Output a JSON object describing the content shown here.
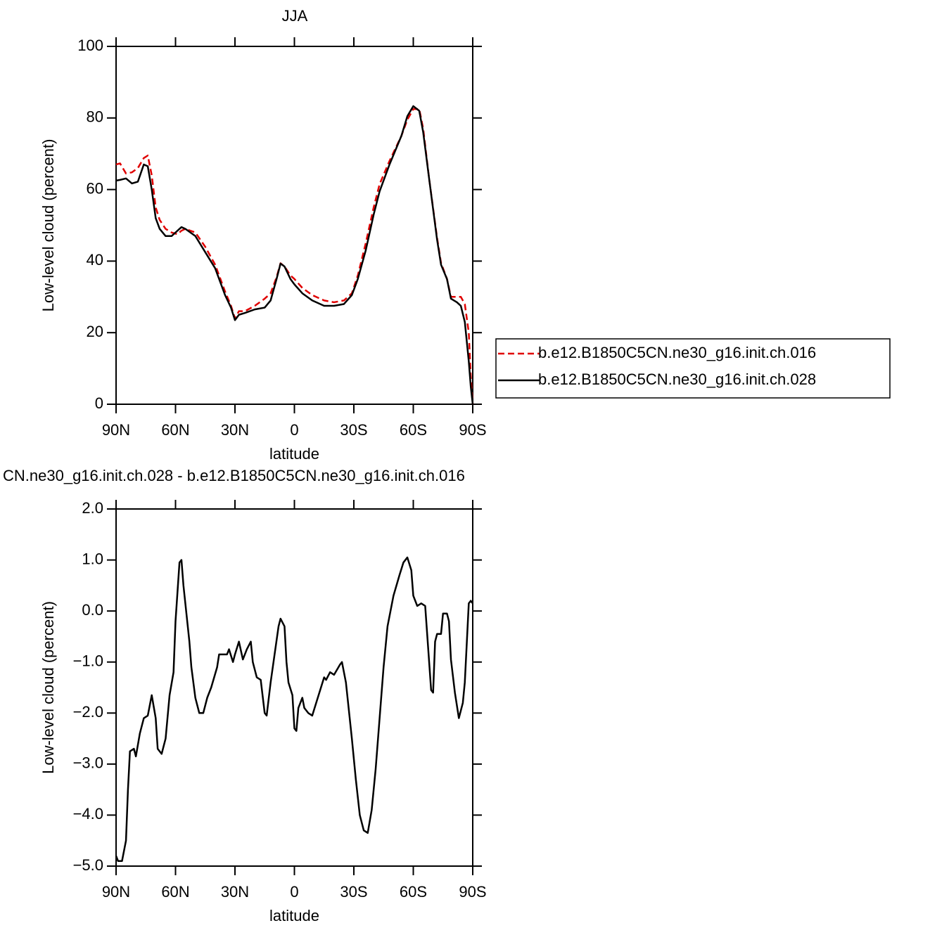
{
  "chart_data": [
    {
      "type": "line",
      "title": "JJA",
      "xlabel": "latitude",
      "ylabel": "Low-level cloud (percent)",
      "xlim": [
        90,
        -90
      ],
      "ylim": [
        0,
        100
      ],
      "xticks": [
        {
          "value": 90,
          "label": "90N"
        },
        {
          "value": 60,
          "label": "60N"
        },
        {
          "value": 30,
          "label": "30N"
        },
        0,
        {
          "value": -30,
          "label": "30S"
        },
        {
          "value": -60,
          "label": "60S"
        },
        {
          "value": -90,
          "label": "90S"
        }
      ],
      "yticks": [
        0,
        20,
        40,
        60,
        80,
        100
      ],
      "legend": "right",
      "x": [
        90,
        88,
        85,
        82,
        79,
        76,
        74,
        72,
        70,
        68,
        65,
        62,
        59,
        57,
        55,
        50,
        45,
        40,
        35,
        32,
        30,
        28,
        25,
        20,
        15,
        12,
        9,
        7,
        5,
        2,
        0,
        -4,
        -9,
        -15,
        -20,
        -25,
        -29,
        -32,
        -36,
        -40,
        -43,
        -48,
        -54,
        -57,
        -60,
        -63,
        -65,
        -68,
        -72,
        -74,
        -77,
        -79,
        -82,
        -84,
        -86,
        -88,
        -89,
        -90
      ],
      "series": [
        {
          "name": "b.e12.B1850C5CN.ne30_g16.init.ch.016",
          "color": "#e00000",
          "dashed": true,
          "values": [
            67,
            67.3,
            64.5,
            64.8,
            66,
            68.8,
            69.5,
            64,
            55,
            51.5,
            49,
            48,
            47.5,
            48.5,
            49,
            48,
            44,
            39,
            31.5,
            27.5,
            24,
            26,
            26,
            27.5,
            29.5,
            31,
            35.5,
            39.4,
            38.5,
            36,
            35,
            32.5,
            30.5,
            29,
            28.5,
            29,
            31,
            36,
            45,
            55,
            61.5,
            68,
            75,
            79.5,
            82.5,
            82.5,
            77,
            63,
            46.5,
            39.5,
            35,
            30,
            30,
            30,
            28,
            20,
            8,
            0
          ]
        },
        {
          "name": "b.e12.B1850C5CN.ne30_g16.init.ch.028",
          "color": "#000000",
          "dashed": false,
          "values": [
            62.5,
            62.7,
            63.1,
            61.7,
            62.2,
            67,
            66.5,
            60,
            52,
            49,
            47,
            47,
            48.5,
            49.5,
            49,
            47,
            42.5,
            38,
            30.5,
            27,
            23.5,
            25,
            25.5,
            26.5,
            27,
            29,
            35,
            39.3,
            38.5,
            35,
            33.5,
            31,
            29,
            27.5,
            27.5,
            28,
            30.5,
            35,
            43,
            53,
            59.5,
            67,
            75,
            80.5,
            83.3,
            82,
            76,
            63,
            46,
            39,
            35,
            29.5,
            28.5,
            27.5,
            23,
            12,
            5,
            0
          ]
        }
      ]
    },
    {
      "type": "line",
      "title": "CN.ne30_g16.init.ch.028 - b.e12.B1850C5CN.ne30_g16.init.ch.016",
      "xlabel": "latitude",
      "ylabel": "Low-level cloud (percent)",
      "xlim": [
        90,
        -90
      ],
      "ylim": [
        -5,
        2
      ],
      "xticks": [
        {
          "value": 90,
          "label": "90N"
        },
        {
          "value": 60,
          "label": "60N"
        },
        {
          "value": 30,
          "label": "30N"
        },
        0,
        {
          "value": -30,
          "label": "30S"
        },
        {
          "value": -60,
          "label": "60S"
        },
        {
          "value": -90,
          "label": "90S"
        }
      ],
      "yticks": [
        {
          "value": -5,
          "label": "−5.0"
        },
        {
          "value": -4,
          "label": "−4.0"
        },
        {
          "value": -3,
          "label": "−3.0"
        },
        {
          "value": -2,
          "label": "−2.0"
        },
        {
          "value": -1,
          "label": "−1.0"
        },
        {
          "value": 0,
          "label": "0.0"
        },
        {
          "value": 1,
          "label": "1.0"
        },
        {
          "value": 2,
          "label": "2.0"
        }
      ],
      "color": "#000000",
      "x": [
        90,
        89,
        87,
        85,
        84,
        83,
        81,
        80,
        78,
        76,
        74,
        72,
        70,
        69,
        67,
        65,
        63,
        61,
        60,
        58,
        57,
        56,
        53,
        52,
        50,
        48,
        46,
        44,
        42,
        39,
        38,
        36,
        34,
        33,
        31,
        30,
        28,
        26,
        24,
        22,
        21,
        19,
        17,
        15,
        14,
        12,
        10,
        8,
        7,
        5,
        4,
        3,
        1,
        0,
        -1,
        -2,
        -4,
        -5,
        -7,
        -9,
        -11,
        -13,
        -15,
        -16,
        -18,
        -20,
        -23,
        -24,
        -26,
        -29,
        -31,
        -33,
        -35,
        -37,
        -39,
        -41,
        -43,
        -45,
        -47,
        -50,
        -53,
        -55,
        -57,
        -59,
        -60,
        -62,
        -64,
        -66,
        -68,
        -69,
        -70,
        -71,
        -72,
        -74,
        -75,
        -77,
        -78,
        -79,
        -81,
        -83,
        -85,
        -86,
        -88,
        -89,
        -90
      ],
      "values": [
        -4.8,
        -4.9,
        -4.9,
        -4.5,
        -3.5,
        -2.75,
        -2.7,
        -2.85,
        -2.4,
        -2.1,
        -2.05,
        -1.65,
        -2.1,
        -2.7,
        -2.8,
        -2.5,
        -1.65,
        -1.2,
        -0.2,
        0.95,
        1.0,
        0.5,
        -0.6,
        -1.1,
        -1.7,
        -2.0,
        -2.0,
        -1.7,
        -1.5,
        -1.1,
        -0.85,
        -0.85,
        -0.85,
        -0.75,
        -1.0,
        -0.85,
        -0.6,
        -0.95,
        -0.75,
        -0.6,
        -1.0,
        -1.3,
        -1.35,
        -2.0,
        -2.05,
        -1.4,
        -0.85,
        -0.3,
        -0.15,
        -0.3,
        -1.0,
        -1.4,
        -1.65,
        -2.3,
        -2.35,
        -1.9,
        -1.7,
        -1.9,
        -2.0,
        -2.05,
        -1.8,
        -1.55,
        -1.3,
        -1.35,
        -1.2,
        -1.25,
        -1.05,
        -1.0,
        -1.4,
        -2.5,
        -3.3,
        -4.0,
        -4.3,
        -4.35,
        -3.9,
        -3.1,
        -2.1,
        -1.1,
        -0.3,
        0.3,
        0.7,
        0.95,
        1.05,
        0.8,
        0.3,
        0.1,
        0.15,
        0.1,
        -1.0,
        -1.55,
        -1.6,
        -0.6,
        -0.45,
        -0.45,
        -0.05,
        -0.05,
        -0.2,
        -0.95,
        -1.6,
        -2.1,
        -1.8,
        -1.4,
        0.15,
        0.2,
        0.15
      ]
    }
  ]
}
